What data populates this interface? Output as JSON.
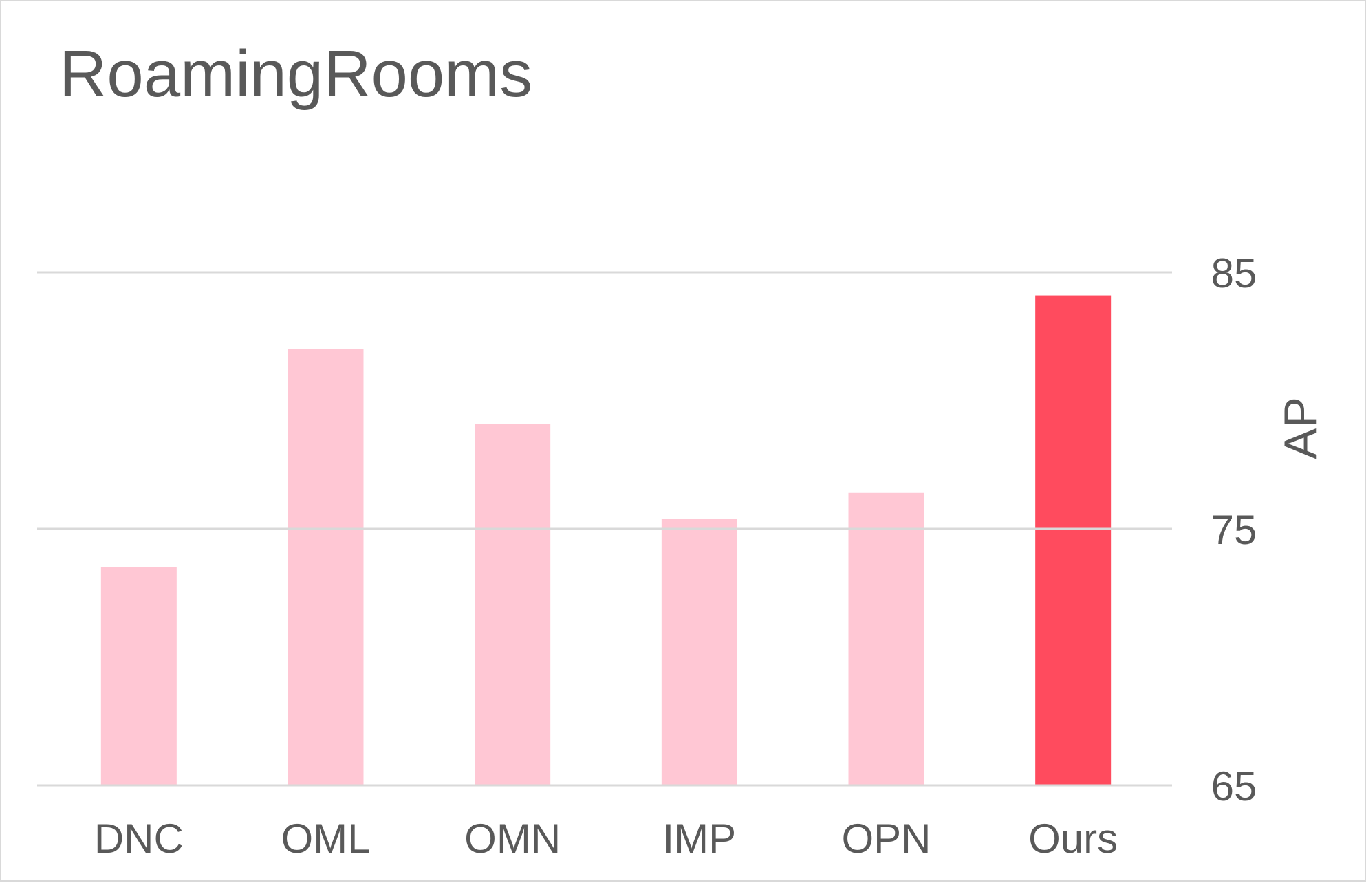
{
  "chart_data": {
    "type": "bar",
    "title": "RoamingRooms",
    "categories": [
      "DNC",
      "OML",
      "OMN",
      "IMP",
      "OPN",
      "Ours"
    ],
    "values": [
      73.5,
      82.0,
      79.1,
      75.4,
      76.4,
      84.1
    ],
    "highlight_index": 5,
    "colors": {
      "bar": "#ffc7d4",
      "highlight": "#ff4b5e",
      "grid": "#d9d9d9",
      "text": "#595959"
    },
    "xlabel": "",
    "ylabel": "AP",
    "ylim": [
      65,
      85
    ],
    "yticks": [
      65,
      75,
      85
    ],
    "y_axis_side": "right",
    "grid": true,
    "legend": "none"
  }
}
